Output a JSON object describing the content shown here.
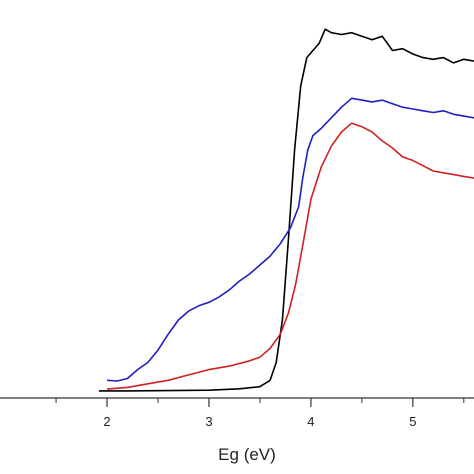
{
  "chart_data": {
    "type": "line",
    "title": "",
    "xlabel": "Eg (eV)",
    "ylabel": "",
    "xlim": [
      0.95,
      5.6
    ],
    "ylim": [
      0.0,
      1.08
    ],
    "x_ticks": [
      2,
      3,
      4,
      5
    ],
    "x_minor_ticks": [
      1.5,
      2.5,
      3.5,
      4.5,
      5.5
    ],
    "grid": false,
    "legend": "none",
    "series": [
      {
        "color": "#000000",
        "points": [
          [
            1.92,
            0.02
          ],
          [
            2.2,
            0.02
          ],
          [
            2.6,
            0.021
          ],
          [
            3.0,
            0.022
          ],
          [
            3.3,
            0.026
          ],
          [
            3.5,
            0.032
          ],
          [
            3.6,
            0.05
          ],
          [
            3.66,
            0.1
          ],
          [
            3.72,
            0.22
          ],
          [
            3.78,
            0.45
          ],
          [
            3.84,
            0.7
          ],
          [
            3.9,
            0.88
          ],
          [
            3.96,
            0.96
          ],
          [
            4.02,
            0.98
          ],
          [
            4.08,
            1.0
          ],
          [
            4.14,
            1.04
          ],
          [
            4.2,
            1.03
          ],
          [
            4.3,
            1.025
          ],
          [
            4.4,
            1.03
          ],
          [
            4.5,
            1.02
          ],
          [
            4.6,
            1.01
          ],
          [
            4.7,
            1.02
          ],
          [
            4.8,
            0.98
          ],
          [
            4.9,
            0.985
          ],
          [
            5.0,
            0.97
          ],
          [
            5.1,
            0.96
          ],
          [
            5.2,
            0.955
          ],
          [
            5.3,
            0.96
          ],
          [
            5.4,
            0.945
          ],
          [
            5.5,
            0.955
          ],
          [
            5.6,
            0.95
          ]
        ]
      },
      {
        "color": "#1f1fc2",
        "points": [
          [
            2.0,
            0.05
          ],
          [
            2.1,
            0.048
          ],
          [
            2.2,
            0.055
          ],
          [
            2.3,
            0.08
          ],
          [
            2.4,
            0.1
          ],
          [
            2.5,
            0.135
          ],
          [
            2.6,
            0.18
          ],
          [
            2.7,
            0.22
          ],
          [
            2.8,
            0.245
          ],
          [
            2.9,
            0.26
          ],
          [
            3.0,
            0.27
          ],
          [
            3.1,
            0.285
          ],
          [
            3.2,
            0.305
          ],
          [
            3.3,
            0.33
          ],
          [
            3.4,
            0.35
          ],
          [
            3.5,
            0.375
          ],
          [
            3.6,
            0.4
          ],
          [
            3.7,
            0.435
          ],
          [
            3.8,
            0.48
          ],
          [
            3.88,
            0.54
          ],
          [
            3.92,
            0.62
          ],
          [
            3.97,
            0.7
          ],
          [
            4.02,
            0.74
          ],
          [
            4.1,
            0.76
          ],
          [
            4.2,
            0.79
          ],
          [
            4.3,
            0.82
          ],
          [
            4.4,
            0.845
          ],
          [
            4.5,
            0.84
          ],
          [
            4.6,
            0.835
          ],
          [
            4.7,
            0.84
          ],
          [
            4.8,
            0.83
          ],
          [
            4.9,
            0.82
          ],
          [
            5.0,
            0.815
          ],
          [
            5.1,
            0.81
          ],
          [
            5.2,
            0.805
          ],
          [
            5.3,
            0.81
          ],
          [
            5.4,
            0.8
          ],
          [
            5.5,
            0.795
          ],
          [
            5.6,
            0.79
          ]
        ]
      },
      {
        "color": "#cc2222",
        "points": [
          [
            2.0,
            0.025
          ],
          [
            2.2,
            0.03
          ],
          [
            2.4,
            0.04
          ],
          [
            2.6,
            0.05
          ],
          [
            2.8,
            0.065
          ],
          [
            3.0,
            0.08
          ],
          [
            3.2,
            0.09
          ],
          [
            3.4,
            0.105
          ],
          [
            3.5,
            0.115
          ],
          [
            3.6,
            0.14
          ],
          [
            3.7,
            0.18
          ],
          [
            3.78,
            0.24
          ],
          [
            3.85,
            0.32
          ],
          [
            3.92,
            0.43
          ],
          [
            4.0,
            0.56
          ],
          [
            4.1,
            0.65
          ],
          [
            4.2,
            0.71
          ],
          [
            4.3,
            0.75
          ],
          [
            4.4,
            0.775
          ],
          [
            4.5,
            0.765
          ],
          [
            4.6,
            0.75
          ],
          [
            4.7,
            0.725
          ],
          [
            4.8,
            0.705
          ],
          [
            4.9,
            0.68
          ],
          [
            5.0,
            0.67
          ],
          [
            5.1,
            0.655
          ],
          [
            5.2,
            0.64
          ],
          [
            5.3,
            0.635
          ],
          [
            5.4,
            0.63
          ],
          [
            5.5,
            0.625
          ],
          [
            5.6,
            0.62
          ]
        ]
      }
    ]
  }
}
